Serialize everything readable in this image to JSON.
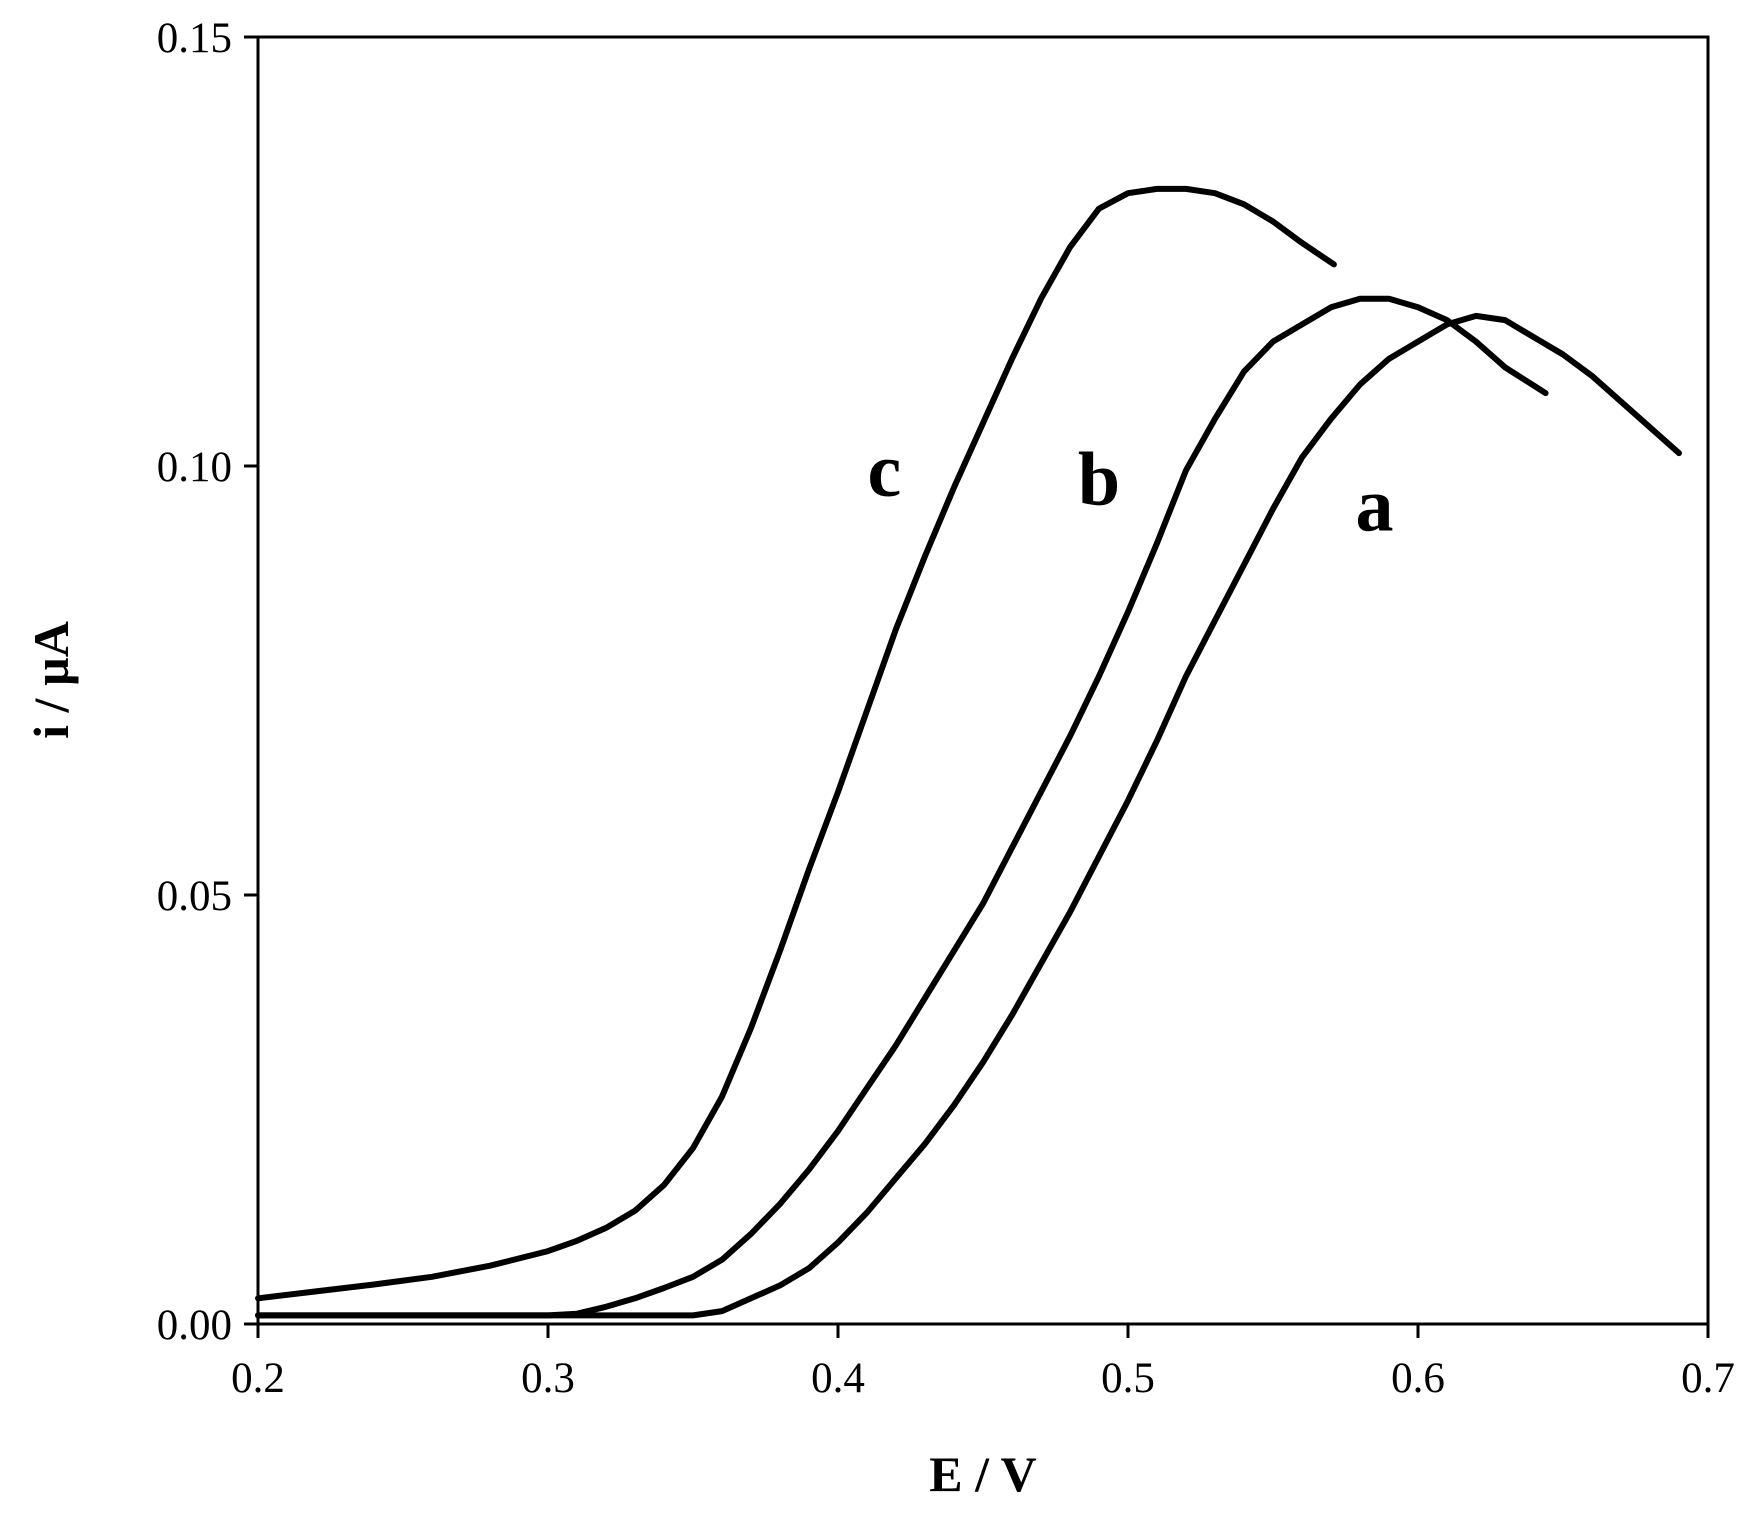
{
  "chart_data": {
    "type": "line",
    "title": "",
    "xlabel": "E / V",
    "ylabel": "i / µA",
    "xlim": [
      0.2,
      0.7
    ],
    "ylim": [
      0,
      0.15
    ],
    "x_ticks": [
      0.2,
      0.3,
      0.4,
      0.5,
      0.6,
      0.7
    ],
    "x_tick_labels": [
      "0.2",
      "0.3",
      "0.4",
      "0.5",
      "0.6",
      "0.7"
    ],
    "y_ticks": [
      0,
      0.05,
      0.1,
      0.15
    ],
    "y_tick_labels": [
      "0.00",
      "0.05",
      "0.10",
      "0.15"
    ],
    "grid": false,
    "legend": "none",
    "line_color": "#000000",
    "series": [
      {
        "label": "a",
        "label_pos": [
          0.585,
          0.0925
        ],
        "points": [
          [
            0.2,
            0.001
          ],
          [
            0.3,
            0.001
          ],
          [
            0.35,
            0.001
          ],
          [
            0.36,
            0.0015
          ],
          [
            0.37,
            0.003
          ],
          [
            0.38,
            0.0045
          ],
          [
            0.39,
            0.0065
          ],
          [
            0.4,
            0.0095
          ],
          [
            0.41,
            0.013
          ],
          [
            0.42,
            0.017
          ],
          [
            0.43,
            0.021
          ],
          [
            0.44,
            0.0255
          ],
          [
            0.45,
            0.0305
          ],
          [
            0.46,
            0.036
          ],
          [
            0.47,
            0.042
          ],
          [
            0.48,
            0.048
          ],
          [
            0.49,
            0.0545
          ],
          [
            0.5,
            0.061
          ],
          [
            0.51,
            0.068
          ],
          [
            0.52,
            0.0755
          ],
          [
            0.53,
            0.082
          ],
          [
            0.54,
            0.0885
          ],
          [
            0.55,
            0.095
          ],
          [
            0.56,
            0.101
          ],
          [
            0.57,
            0.1055
          ],
          [
            0.58,
            0.1095
          ],
          [
            0.59,
            0.1125
          ],
          [
            0.6,
            0.1145
          ],
          [
            0.61,
            0.1165
          ],
          [
            0.62,
            0.1175
          ],
          [
            0.63,
            0.117
          ],
          [
            0.64,
            0.115
          ],
          [
            0.65,
            0.113
          ],
          [
            0.66,
            0.1105
          ],
          [
            0.67,
            0.1075
          ],
          [
            0.68,
            0.1045
          ],
          [
            0.69,
            0.1015
          ]
        ]
      },
      {
        "label": "b",
        "label_pos": [
          0.49,
          0.0955
        ],
        "points": [
          [
            0.2,
            0.001
          ],
          [
            0.25,
            0.001
          ],
          [
            0.3,
            0.001
          ],
          [
            0.31,
            0.0012
          ],
          [
            0.32,
            0.002
          ],
          [
            0.33,
            0.003
          ],
          [
            0.34,
            0.0042
          ],
          [
            0.35,
            0.0055
          ],
          [
            0.36,
            0.0075
          ],
          [
            0.37,
            0.0105
          ],
          [
            0.38,
            0.014
          ],
          [
            0.39,
            0.018
          ],
          [
            0.4,
            0.0225
          ],
          [
            0.41,
            0.0275
          ],
          [
            0.42,
            0.0325
          ],
          [
            0.43,
            0.038
          ],
          [
            0.44,
            0.0435
          ],
          [
            0.45,
            0.049
          ],
          [
            0.46,
            0.0555
          ],
          [
            0.47,
            0.062
          ],
          [
            0.48,
            0.0685
          ],
          [
            0.49,
            0.0755
          ],
          [
            0.5,
            0.083
          ],
          [
            0.51,
            0.091
          ],
          [
            0.52,
            0.0995
          ],
          [
            0.53,
            0.1055
          ],
          [
            0.54,
            0.111
          ],
          [
            0.55,
            0.1145
          ],
          [
            0.56,
            0.1165
          ],
          [
            0.57,
            0.1185
          ],
          [
            0.58,
            0.1195
          ],
          [
            0.59,
            0.1195
          ],
          [
            0.6,
            0.1185
          ],
          [
            0.61,
            0.117
          ],
          [
            0.62,
            0.1145
          ],
          [
            0.63,
            0.1115
          ],
          [
            0.644,
            0.1085
          ]
        ]
      },
      {
        "label": "c",
        "label_pos": [
          0.416,
          0.0965
        ],
        "points": [
          [
            0.2,
            0.003
          ],
          [
            0.22,
            0.0038
          ],
          [
            0.24,
            0.0046
          ],
          [
            0.26,
            0.0055
          ],
          [
            0.28,
            0.0068
          ],
          [
            0.3,
            0.0085
          ],
          [
            0.31,
            0.0097
          ],
          [
            0.32,
            0.0112
          ],
          [
            0.33,
            0.0132
          ],
          [
            0.34,
            0.0162
          ],
          [
            0.35,
            0.0205
          ],
          [
            0.36,
            0.0265
          ],
          [
            0.37,
            0.0345
          ],
          [
            0.38,
            0.0435
          ],
          [
            0.39,
            0.053
          ],
          [
            0.4,
            0.062
          ],
          [
            0.41,
            0.0715
          ],
          [
            0.42,
            0.081
          ],
          [
            0.43,
            0.0895
          ],
          [
            0.44,
            0.0975
          ],
          [
            0.45,
            0.105
          ],
          [
            0.46,
            0.1125
          ],
          [
            0.47,
            0.1195
          ],
          [
            0.48,
            0.1255
          ],
          [
            0.49,
            0.13
          ],
          [
            0.5,
            0.1318
          ],
          [
            0.51,
            0.1323
          ],
          [
            0.52,
            0.1323
          ],
          [
            0.53,
            0.1318
          ],
          [
            0.54,
            0.1305
          ],
          [
            0.55,
            0.1285
          ],
          [
            0.56,
            0.126
          ],
          [
            0.571,
            0.1235
          ]
        ]
      }
    ]
  }
}
